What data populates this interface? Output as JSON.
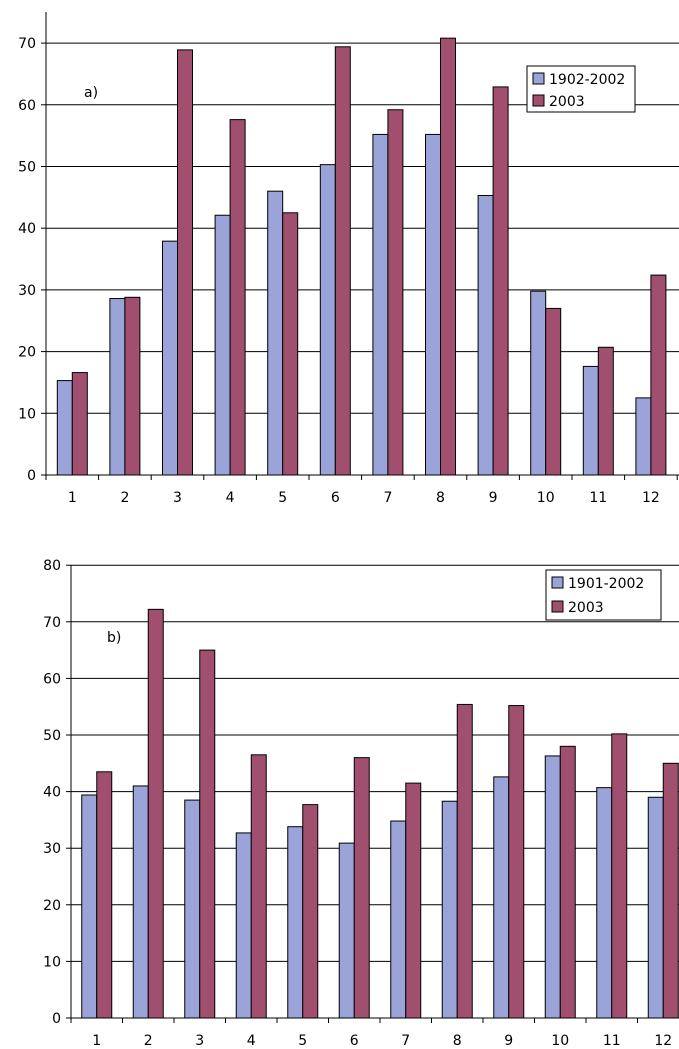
{
  "colors": {
    "series_a": "#9aa4d8",
    "series_b": "#a0506e",
    "grid": "#000000",
    "background": "#ffffff"
  },
  "chart_data": [
    {
      "panel": "a",
      "type": "bar",
      "annotation": "a)",
      "categories": [
        "1",
        "2",
        "3",
        "4",
        "5",
        "6",
        "7",
        "8",
        "9",
        "10",
        "11",
        "12"
      ],
      "series": [
        {
          "name": "1902-2002",
          "color": "#9aa4d8",
          "values": [
            15.3,
            28.6,
            37.9,
            42.1,
            46.0,
            50.3,
            55.2,
            55.2,
            45.3,
            29.8,
            17.6,
            12.5
          ]
        },
        {
          "name": "2003",
          "color": "#a0506e",
          "values": [
            16.6,
            28.8,
            68.9,
            57.6,
            42.5,
            69.4,
            59.2,
            70.8,
            62.9,
            27.0,
            20.7,
            32.4
          ]
        }
      ],
      "yticks": [
        "0",
        "10",
        "20",
        "30",
        "40",
        "50",
        "60",
        "70"
      ],
      "ylim": [
        0,
        75
      ],
      "grid": true,
      "legend_position": "top-right"
    },
    {
      "panel": "b",
      "type": "bar",
      "annotation": "b)",
      "categories": [
        "1",
        "2",
        "3",
        "4",
        "5",
        "6",
        "7",
        "8",
        "9",
        "10",
        "11",
        "12"
      ],
      "series": [
        {
          "name": "1901-2002",
          "color": "#9aa4d8",
          "values": [
            39.4,
            41.0,
            38.5,
            32.7,
            33.8,
            30.9,
            34.8,
            38.3,
            42.6,
            46.3,
            40.7,
            39.0
          ]
        },
        {
          "name": "2003",
          "color": "#a0506e",
          "values": [
            43.5,
            72.2,
            65.0,
            46.5,
            37.7,
            46.0,
            41.5,
            55.4,
            55.2,
            48.0,
            50.2,
            45.0
          ]
        }
      ],
      "yticks": [
        "0",
        "10",
        "20",
        "30",
        "40",
        "50",
        "60",
        "70",
        "80"
      ],
      "ylim": [
        0,
        80
      ],
      "grid": true,
      "legend_position": "top-right"
    }
  ]
}
